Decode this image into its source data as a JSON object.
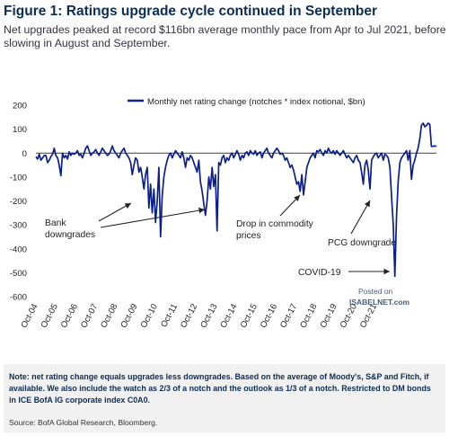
{
  "title": "Figure 1: Ratings upgrade cycle continued in September",
  "subtitle": "Net upgrades peaked at record $116bn average monthly pace from Apr to Jul 2021, before slowing in August and September.",
  "note": "Note: net rating change equals upgrades less downgrades. Based on the average of Moody's, S&P and Fitch, if available. We also include the watch as 2/3 of a notch and the outlook as 1/3 of a notch. Restricted to DM bonds in ICE BofA IG corporate index C0A0.",
  "source": "Source: BofA Global Research, Bloomberg.",
  "watermark": {
    "line1": "Posted on",
    "line2": "ISABELNET.com"
  },
  "colors": {
    "series": "#0c1f8a",
    "title": "#0b2d55"
  },
  "chart_data": {
    "type": "line",
    "series": [
      {
        "name": "Monthly  net rating change (notches * index notional, $bn)",
        "x_start": "2004-10",
        "frequency": "monthly",
        "values": [
          -15,
          -25,
          -5,
          -30,
          -20,
          -10,
          -10,
          -40,
          -30,
          -15,
          -5,
          20,
          -10,
          -20,
          -50,
          -95,
          0,
          -20,
          -10,
          -25,
          5,
          -10,
          0,
          -5,
          0,
          10,
          -10,
          -5,
          -20,
          0,
          20,
          30,
          10,
          -10,
          0,
          5,
          15,
          0,
          -10,
          5,
          20,
          10,
          0,
          -10,
          -5,
          10,
          30,
          10,
          0,
          -10,
          -20,
          0,
          10,
          20,
          0,
          -10,
          -20,
          -40,
          -90,
          -50,
          -20,
          -30,
          -80,
          -60,
          -100,
          -150,
          -90,
          -60,
          -230,
          -130,
          -250,
          -150,
          -290,
          -200,
          -60,
          -350,
          -180,
          -100,
          -60,
          -30,
          -10,
          0,
          -20,
          -5,
          10,
          0,
          -10,
          -20,
          5,
          -20,
          -60,
          -20,
          -30,
          -10,
          -20,
          -40,
          -60,
          -80,
          -30,
          -120,
          -160,
          -210,
          -260,
          -200,
          -100,
          -150,
          -60,
          -140,
          -90,
          -325,
          -40,
          -50,
          -20,
          -10,
          -40,
          -20,
          -30,
          -10,
          0,
          -20,
          -5,
          10,
          -5,
          -30,
          -10,
          -20,
          0,
          5,
          -10,
          10,
          0,
          -5,
          10,
          -10,
          0,
          5,
          -20,
          0,
          10,
          20,
          0,
          -10,
          -20,
          0,
          10,
          20,
          10,
          -5,
          0,
          -10,
          -30,
          -20,
          -40,
          -60,
          -50,
          -70,
          -100,
          -130,
          -120,
          -160,
          -90,
          -175,
          -120,
          -60,
          -40,
          -20,
          -10,
          0,
          -20,
          10,
          5,
          15,
          0,
          -10,
          10,
          0,
          20,
          5,
          0,
          10,
          -5,
          10,
          0,
          -10,
          0,
          10,
          -5,
          -20,
          -10,
          -20,
          -30,
          -40,
          -20,
          -10,
          -30,
          -40,
          -80,
          -130,
          -50,
          -30,
          -70,
          -150,
          -30,
          -15,
          -5,
          0,
          -20,
          -10,
          0,
          -30,
          -5,
          -10,
          -20,
          -60,
          -180,
          -300,
          -515,
          -260,
          -120,
          -40,
          -20,
          -10,
          0,
          10,
          -30,
          10,
          -110,
          -50,
          -30,
          0,
          20,
          60,
          116,
          125,
          110,
          115,
          125,
          120,
          28,
          28,
          30,
          28
        ]
      }
    ],
    "x_ticks": [
      "Oct-04",
      "Oct-05",
      "Oct-06",
      "Oct-07",
      "Oct-08",
      "Oct-09",
      "Oct-10",
      "Oct-11",
      "Oct-12",
      "Oct-13",
      "Oct-14",
      "Oct-15",
      "Oct-16",
      "Oct-17",
      "Oct-18",
      "Oct-19",
      "Oct-20",
      "Oct-21"
    ],
    "y_ticks": [
      200,
      100,
      0,
      -100,
      -200,
      -300,
      -400,
      -500,
      -600
    ],
    "ylim": [
      -600,
      200
    ],
    "grid": false,
    "legend_position": "top-center",
    "annotations": [
      {
        "text": "Bank",
        "line2": "downgrades"
      },
      {
        "text": "Drop in commodity",
        "line2": "prices"
      },
      {
        "text": "PCG downgrade"
      },
      {
        "text": "COVID-19"
      }
    ]
  }
}
